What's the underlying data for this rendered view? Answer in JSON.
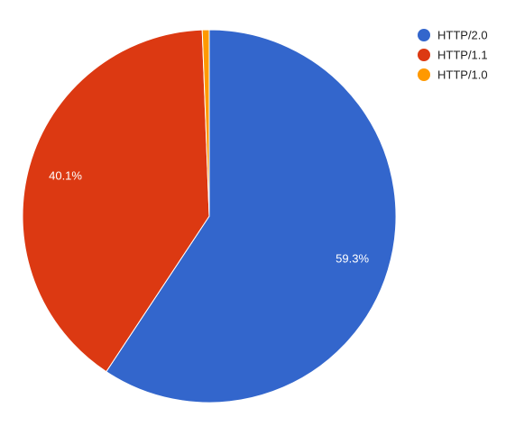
{
  "chart_data": {
    "type": "pie",
    "labels": [
      "HTTP/2.0",
      "HTTP/1.1",
      "HTTP/1.0"
    ],
    "values": [
      59.3,
      40.1,
      0.6
    ],
    "data_labels": [
      "59.3%",
      "40.1%",
      ""
    ],
    "colors": [
      "#3366cc",
      "#dc3912",
      "#ff9900"
    ],
    "start_angle_deg": 0,
    "direction": "clockwise",
    "legend_position": "top-right"
  }
}
